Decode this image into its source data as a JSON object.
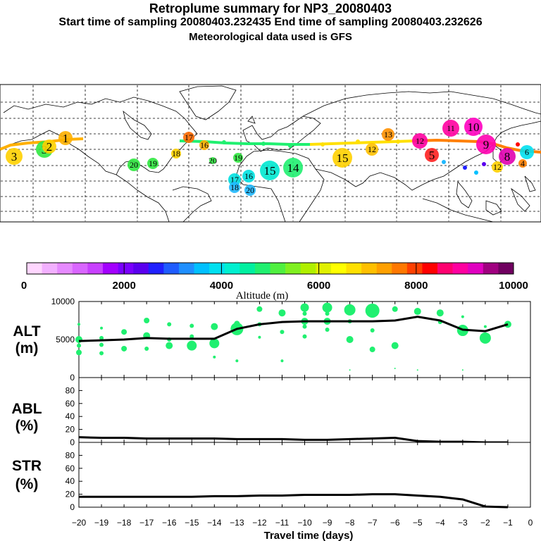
{
  "header": {
    "title": "Retroplume summary for NP3_20080403",
    "sampling": "Start time of sampling 20080403.232435     End time of sampling 20080403.232626",
    "met": "Meteorological data used is GFS"
  },
  "colorbar": {
    "label": "Altitude (m)",
    "tick_labels": [
      "0",
      "2000",
      "4000",
      "6000",
      "8000",
      "10000"
    ],
    "colors": [
      "#ffd6ff",
      "#f2b0ff",
      "#e68aff",
      "#d966ff",
      "#c840ff",
      "#a300ff",
      "#7a00ff",
      "#5a00ee",
      "#2020ff",
      "#1f5cff",
      "#1f8fff",
      "#00c0ff",
      "#00e0f0",
      "#00f0d0",
      "#00f0a0",
      "#20f070",
      "#50f040",
      "#80f020",
      "#b0f000",
      "#e0f000",
      "#ffff00",
      "#ffe000",
      "#ffc000",
      "#ffa000",
      "#ff7800",
      "#ff4000",
      "#ff0000",
      "#ff0070",
      "#ff00a0",
      "#e000c0",
      "#a00080",
      "#700060"
    ]
  },
  "map": {
    "day_labels": [
      {
        "t": "3",
        "c": "#ffd000",
        "big": true
      },
      {
        "t": "3",
        "c": "#30e840",
        "big": true
      },
      {
        "t": "2",
        "c": "#ffd000",
        "big": true
      },
      {
        "t": "1",
        "c": "#ffb000",
        "big": true
      },
      {
        "t": "17",
        "c": "#ff6a00",
        "big": false
      },
      {
        "t": "16",
        "c": "#ffb000",
        "big": false
      },
      {
        "t": "18",
        "c": "#ffd000",
        "big": false
      },
      {
        "t": "20",
        "c": "#30e840",
        "big": false
      },
      {
        "t": "19",
        "c": "#30e840",
        "big": false
      },
      {
        "t": "19",
        "c": "#30e840",
        "big": false
      },
      {
        "t": "20",
        "c": "#30e840",
        "big": false
      },
      {
        "t": "17",
        "c": "#00e0e0",
        "big": false
      },
      {
        "t": "16",
        "c": "#00e0e0",
        "big": false
      },
      {
        "t": "18",
        "c": "#20b8ff",
        "big": false
      },
      {
        "t": "20",
        "c": "#20b8ff",
        "big": false
      },
      {
        "t": "15",
        "c": "#00e8d0",
        "big": true
      },
      {
        "t": "14",
        "c": "#20f070",
        "big": true
      },
      {
        "t": "15",
        "c": "#ffd000",
        "big": true
      },
      {
        "t": "12",
        "c": "#ffc000",
        "big": false
      },
      {
        "t": "13",
        "c": "#ff9000",
        "big": false
      },
      {
        "t": "12",
        "c": "#ff00a0",
        "big": false
      },
      {
        "t": "11",
        "c": "#ff00a0",
        "big": false
      },
      {
        "t": "10",
        "c": "#ff00c0",
        "big": true
      },
      {
        "t": "9",
        "c": "#ff00b0",
        "big": true
      },
      {
        "t": "8",
        "c": "#e000b0",
        "big": true
      },
      {
        "t": "5",
        "c": "#ff2020",
        "big": true
      },
      {
        "t": "12",
        "c": "#ffd000",
        "big": false
      },
      {
        "t": "6",
        "c": "#00e0f0",
        "big": false
      },
      {
        "t": "4",
        "c": "#ff8000",
        "big": false
      },
      {
        "t": "4",
        "c": "#ffc000",
        "big": false
      }
    ]
  },
  "chart_data": {
    "type": "line",
    "x": [
      -20,
      -19,
      -18,
      -17,
      -16,
      -15,
      -14,
      -13,
      -12,
      -11,
      -10,
      -9,
      -8,
      -7,
      -6,
      -5,
      -4,
      -3,
      -2,
      -1
    ],
    "xlabel": "Travel time (days)",
    "x_tick_labels": [
      "−20",
      "−19",
      "−18",
      "−17",
      "−16",
      "−15",
      "−14",
      "−13",
      "−12",
      "−11",
      "−10",
      "−9",
      "−8",
      "−7",
      "−6",
      "−5",
      "−4",
      "−3",
      "−2",
      "−1",
      "0"
    ],
    "xlim": [
      -20,
      0
    ],
    "panels": [
      {
        "name": "ALT",
        "label_line1": "ALT",
        "label_line2": "(m)",
        "ylim": [
          0,
          10000
        ],
        "y_tick_labels": [
          "0",
          "5000",
          "10000"
        ],
        "values": [
          4800,
          4900,
          5000,
          5200,
          5100,
          5100,
          5100,
          6400,
          7000,
          7300,
          7400,
          7400,
          7400,
          7400,
          7500,
          8000,
          7500,
          6300,
          6100,
          7000
        ],
        "markers": [
          {
            "x": -20,
            "y": 7000,
            "r": 2
          },
          {
            "x": -20,
            "y": 5000,
            "r": 5
          },
          {
            "x": -20,
            "y": 4200,
            "r": 3
          },
          {
            "x": -20,
            "y": 3300,
            "r": 4
          },
          {
            "x": -19,
            "y": 6500,
            "r": 2
          },
          {
            "x": -19,
            "y": 5200,
            "r": 3
          },
          {
            "x": -19,
            "y": 4300,
            "r": 3
          },
          {
            "x": -19,
            "y": 3200,
            "r": 3
          },
          {
            "x": -18,
            "y": 6000,
            "r": 4
          },
          {
            "x": -18,
            "y": 3800,
            "r": 4
          },
          {
            "x": -17,
            "y": 7500,
            "r": 4
          },
          {
            "x": -17,
            "y": 5500,
            "r": 5
          },
          {
            "x": -17,
            "y": 3800,
            "r": 3
          },
          {
            "x": -16,
            "y": 7000,
            "r": 3
          },
          {
            "x": -16,
            "y": 5000,
            "r": 3
          },
          {
            "x": -16,
            "y": 4200,
            "r": 5
          },
          {
            "x": -15,
            "y": 6800,
            "r": 3
          },
          {
            "x": -15,
            "y": 5400,
            "r": 3
          },
          {
            "x": -15,
            "y": 4200,
            "r": 7
          },
          {
            "x": -14,
            "y": 6700,
            "r": 5
          },
          {
            "x": -14,
            "y": 4500,
            "r": 7
          },
          {
            "x": -14,
            "y": 2700,
            "r": 2
          },
          {
            "x": -13,
            "y": 7100,
            "r": 4
          },
          {
            "x": -13,
            "y": 6400,
            "r": 9
          },
          {
            "x": -13,
            "y": 2200,
            "r": 2
          },
          {
            "x": -12,
            "y": 9000,
            "r": 4
          },
          {
            "x": -12,
            "y": 7000,
            "r": 3
          },
          {
            "x": -12,
            "y": 5300,
            "r": 2
          },
          {
            "x": -11,
            "y": 8500,
            "r": 5
          },
          {
            "x": -11,
            "y": 6000,
            "r": 3
          },
          {
            "x": -11,
            "y": 2200,
            "r": 2
          },
          {
            "x": -10,
            "y": 9200,
            "r": 6
          },
          {
            "x": -10,
            "y": 8400,
            "r": 3
          },
          {
            "x": -10,
            "y": 7400,
            "r": 5
          },
          {
            "x": -10,
            "y": 6700,
            "r": 3
          },
          {
            "x": -10,
            "y": 5400,
            "r": 3
          },
          {
            "x": -9,
            "y": 9200,
            "r": 7
          },
          {
            "x": -9,
            "y": 8400,
            "r": 3
          },
          {
            "x": -9,
            "y": 7400,
            "r": 5
          },
          {
            "x": -9,
            "y": 6300,
            "r": 3
          },
          {
            "x": -8,
            "y": 8900,
            "r": 8
          },
          {
            "x": -8,
            "y": 7400,
            "r": 3
          },
          {
            "x": -8,
            "y": 5000,
            "r": 5
          },
          {
            "x": -8,
            "y": 1000,
            "r": 1
          },
          {
            "x": -7,
            "y": 8800,
            "r": 10
          },
          {
            "x": -7,
            "y": 6200,
            "r": 3
          },
          {
            "x": -7,
            "y": 3700,
            "r": 4
          },
          {
            "x": -6,
            "y": 9000,
            "r": 4
          },
          {
            "x": -6,
            "y": 4200,
            "r": 5
          },
          {
            "x": -6,
            "y": 1200,
            "r": 1
          },
          {
            "x": -5,
            "y": 8700,
            "r": 5
          },
          {
            "x": -5,
            "y": 1000,
            "r": 1
          },
          {
            "x": -4,
            "y": 8500,
            "r": 5
          },
          {
            "x": -4,
            "y": 7300,
            "r": 3
          },
          {
            "x": -3,
            "y": 6200,
            "r": 8
          },
          {
            "x": -3,
            "y": 8000,
            "r": 2
          },
          {
            "x": -3,
            "y": 1000,
            "r": 1
          },
          {
            "x": -2,
            "y": 5200,
            "r": 8
          },
          {
            "x": -2,
            "y": 6700,
            "r": 2
          },
          {
            "x": -1,
            "y": 7000,
            "r": 5
          }
        ]
      },
      {
        "name": "ABL",
        "label_line1": "ABL",
        "label_line2": "(%)",
        "ylim": [
          0,
          100
        ],
        "y_tick_labels": [
          "0",
          "20",
          "40",
          "60",
          "80"
        ],
        "values": [
          8,
          7,
          7,
          6,
          6,
          6,
          6,
          5,
          5,
          5,
          4,
          4,
          5,
          6,
          7,
          2,
          1,
          1,
          0,
          0
        ]
      },
      {
        "name": "STR",
        "label_line1": "STR",
        "label_line2": "(%)",
        "ylim": [
          0,
          100
        ],
        "y_tick_labels": [
          "0",
          "20",
          "40",
          "60",
          "80"
        ],
        "values": [
          16,
          16,
          16,
          16,
          16,
          16,
          17,
          17,
          18,
          18,
          19,
          19,
          19,
          20,
          20,
          18,
          16,
          12,
          1,
          0
        ]
      }
    ]
  }
}
